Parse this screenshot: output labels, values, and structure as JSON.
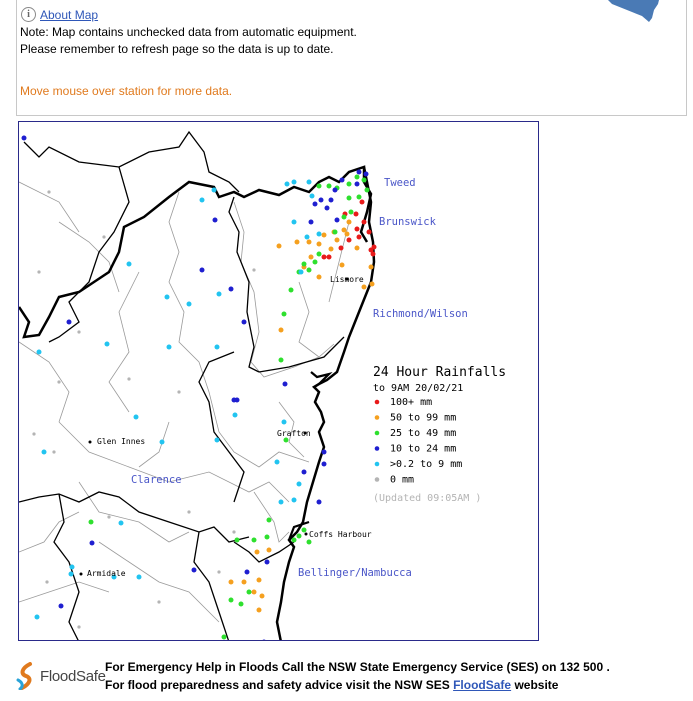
{
  "info": {
    "about_link": "About Map",
    "note1": "Note: Map contains unchecked data from automatic equipment.",
    "note2": "Please remember to refresh page so the data is up to date.",
    "hint": "Move mouse over station for more data."
  },
  "map": {
    "regions": [
      {
        "id": "tweed",
        "label": "Tweed"
      },
      {
        "id": "brunswick",
        "label": "Brunswick"
      },
      {
        "id": "richmond",
        "label": "Richmond/Wilson"
      },
      {
        "id": "clarence",
        "label": "Clarence"
      },
      {
        "id": "bellinger",
        "label": "Bellinger/Nambucca"
      }
    ],
    "towns": [
      {
        "id": "lismore",
        "label": "Lismore"
      },
      {
        "id": "grafton",
        "label": "Grafton"
      },
      {
        "id": "glen-innes",
        "label": "Glen Innes"
      },
      {
        "id": "coffs",
        "label": "Coffs Harbour"
      },
      {
        "id": "armidale",
        "label": "Armidale"
      }
    ],
    "legend": {
      "title": "24 Hour Rainfalls",
      "subtitle": "to 9AM 20/02/21",
      "items": [
        {
          "label": "100+ mm",
          "color": "#e81a1a"
        },
        {
          "label": "50  to 99 mm",
          "color": "#f5a01f"
        },
        {
          "label": "25  to 49 mm",
          "color": "#2ee02e"
        },
        {
          "label": "10  to 24 mm",
          "color": "#1f1fd0"
        },
        {
          "label": ">0.2 to 9 mm",
          "color": "#22c4f0"
        },
        {
          "label": "0 mm",
          "color": "#b4b4b4"
        }
      ],
      "updated": "(Updated 09:05AM  )"
    },
    "stations": [
      {
        "c": "red",
        "n": 14
      },
      {
        "c": "orange",
        "n": 28
      },
      {
        "c": "green",
        "n": 34
      },
      {
        "c": "blue",
        "n": 30
      },
      {
        "c": "cyan",
        "n": 34
      },
      {
        "c": "grey",
        "n": 18
      }
    ]
  },
  "footer": {
    "logo_text": "FloodSafe",
    "line1": "For Emergency Help in Floods Call the NSW State Emergency Service (SES) on 132 500 .",
    "line2_pre": "For flood preparedness and safety advice visit the NSW SES ",
    "line2_link": "FloodSafe",
    "line2_post": " website"
  }
}
